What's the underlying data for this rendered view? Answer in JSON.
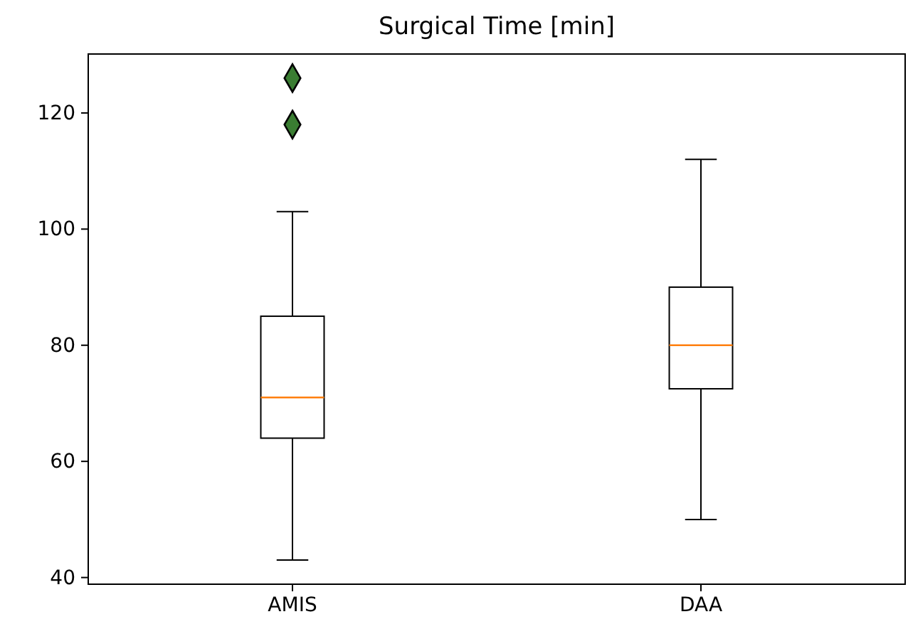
{
  "chart_data": {
    "type": "box",
    "title": "Surgical Time [min]",
    "categories": [
      "AMIS",
      "DAA"
    ],
    "boxes": [
      {
        "low": 43,
        "q1": 64,
        "median": 71,
        "q3": 85,
        "high": 103,
        "outliers": [
          118,
          126
        ]
      },
      {
        "low": 50,
        "q1": 72.5,
        "median": 80,
        "q3": 90,
        "high": 112
      }
    ],
    "ylim": [
      38.85,
      130.15
    ],
    "yticks": [
      40,
      60,
      80,
      100,
      120
    ],
    "marker": "diamond",
    "grid": false
  }
}
